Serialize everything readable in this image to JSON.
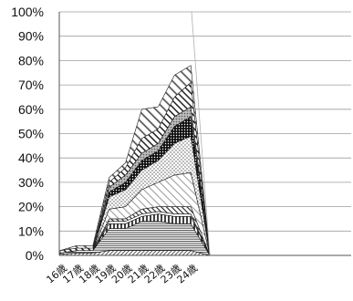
{
  "chart_data": {
    "type": "area",
    "stacked": true,
    "categories": [
      "16歳",
      "17歳",
      "18歳",
      "19歳",
      "20歳",
      "21歳",
      "22歳",
      "23歳",
      "24歳"
    ],
    "ylim": [
      0,
      100
    ],
    "yticks": [
      "0%",
      "10%",
      "20%",
      "30%",
      "40%",
      "50%",
      "60%",
      "70%",
      "80%",
      "90%",
      "100%"
    ],
    "grid": true,
    "legend": "none",
    "series": [
      {
        "fill": "diag-fine-dark",
        "values": [
          0.5,
          1,
          1,
          2,
          2,
          2,
          2,
          2,
          2
        ]
      },
      {
        "fill": "horizontal-lines",
        "values": [
          0.5,
          1,
          1,
          9,
          9,
          12,
          12,
          11,
          11
        ]
      },
      {
        "fill": "vertical-bars",
        "values": [
          0,
          0,
          0,
          2,
          2,
          2,
          3,
          3,
          3
        ]
      },
      {
        "fill": "white",
        "values": [
          0,
          0,
          0,
          1,
          1,
          1,
          1,
          1,
          1
        ]
      },
      {
        "fill": "diag-dark",
        "values": [
          0,
          0,
          0,
          1,
          1,
          2,
          2,
          3,
          3
        ]
      },
      {
        "fill": "diag-light",
        "values": [
          0,
          0,
          0,
          4,
          5,
          8,
          10,
          13,
          14
        ]
      },
      {
        "fill": "dots",
        "values": [
          0,
          0,
          0,
          5,
          7,
          8,
          9,
          13,
          15
        ]
      },
      {
        "fill": "black-dots",
        "values": [
          0,
          0,
          0,
          2,
          3,
          4,
          4,
          7,
          8
        ]
      },
      {
        "fill": "gray-dots",
        "values": [
          0,
          0,
          0,
          2,
          3,
          3,
          3,
          4,
          4
        ]
      },
      {
        "fill": "diag-wide-dark",
        "values": [
          1,
          1,
          1,
          2,
          3,
          6,
          6,
          8,
          10
        ]
      },
      {
        "fill": "diag-wide-light",
        "values": [
          0,
          1,
          1,
          2,
          2,
          12,
          9,
          9,
          7
        ]
      }
    ]
  }
}
